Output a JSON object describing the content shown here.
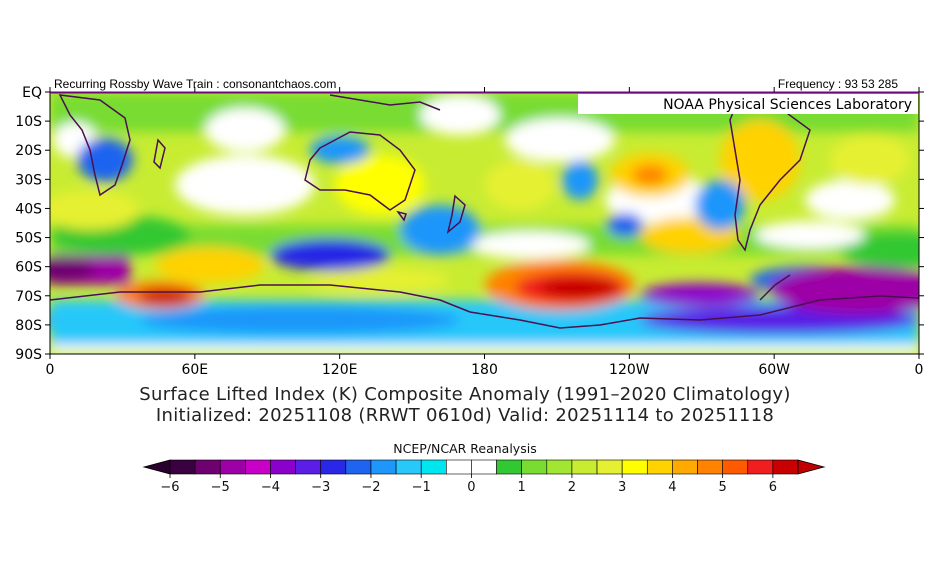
{
  "header": {
    "left_text": "Recurring Rossby Wave Train : consonantchaos.com",
    "right_text": "Frequency : 93 53 285"
  },
  "map": {
    "lab_label": "NOAA Physical Sciences Laboratory",
    "y_ticks": [
      "EQ",
      "10S",
      "20S",
      "30S",
      "40S",
      "50S",
      "60S",
      "70S",
      "80S",
      "90S"
    ],
    "x_ticks": [
      "0",
      "60E",
      "120E",
      "180",
      "120W",
      "60W",
      "0"
    ]
  },
  "titles": {
    "line1": "Surface Lifted Index (K) Composite Anomaly (1991–2020 Climatology)",
    "line2": "Initialized: 20251108 (RRWT 0610d) Valid: 20251114 to 20251118"
  },
  "colorbar": {
    "title": "NCEP/NCAR Reanalysis",
    "labels": [
      "−6",
      "−5",
      "−4",
      "−3",
      "−2",
      "−1",
      "0",
      "1",
      "2",
      "3",
      "4",
      "5",
      "6"
    ],
    "colors": [
      "#3a0040",
      "#6e0070",
      "#9c00a6",
      "#c800c8",
      "#8c00cc",
      "#5a1ee6",
      "#2828e6",
      "#1e64f0",
      "#1e96fa",
      "#28c8fa",
      "#00e6f0",
      "#ffffff",
      "#ffffff",
      "#32c832",
      "#78dc32",
      "#a0e632",
      "#c8ec32",
      "#e6f032",
      "#ffff00",
      "#ffd200",
      "#ffaa00",
      "#ff8200",
      "#ff5a00",
      "#f01e1e",
      "#c80000"
    ],
    "under_color": "#2a002e",
    "over_color": "#c00000"
  }
}
